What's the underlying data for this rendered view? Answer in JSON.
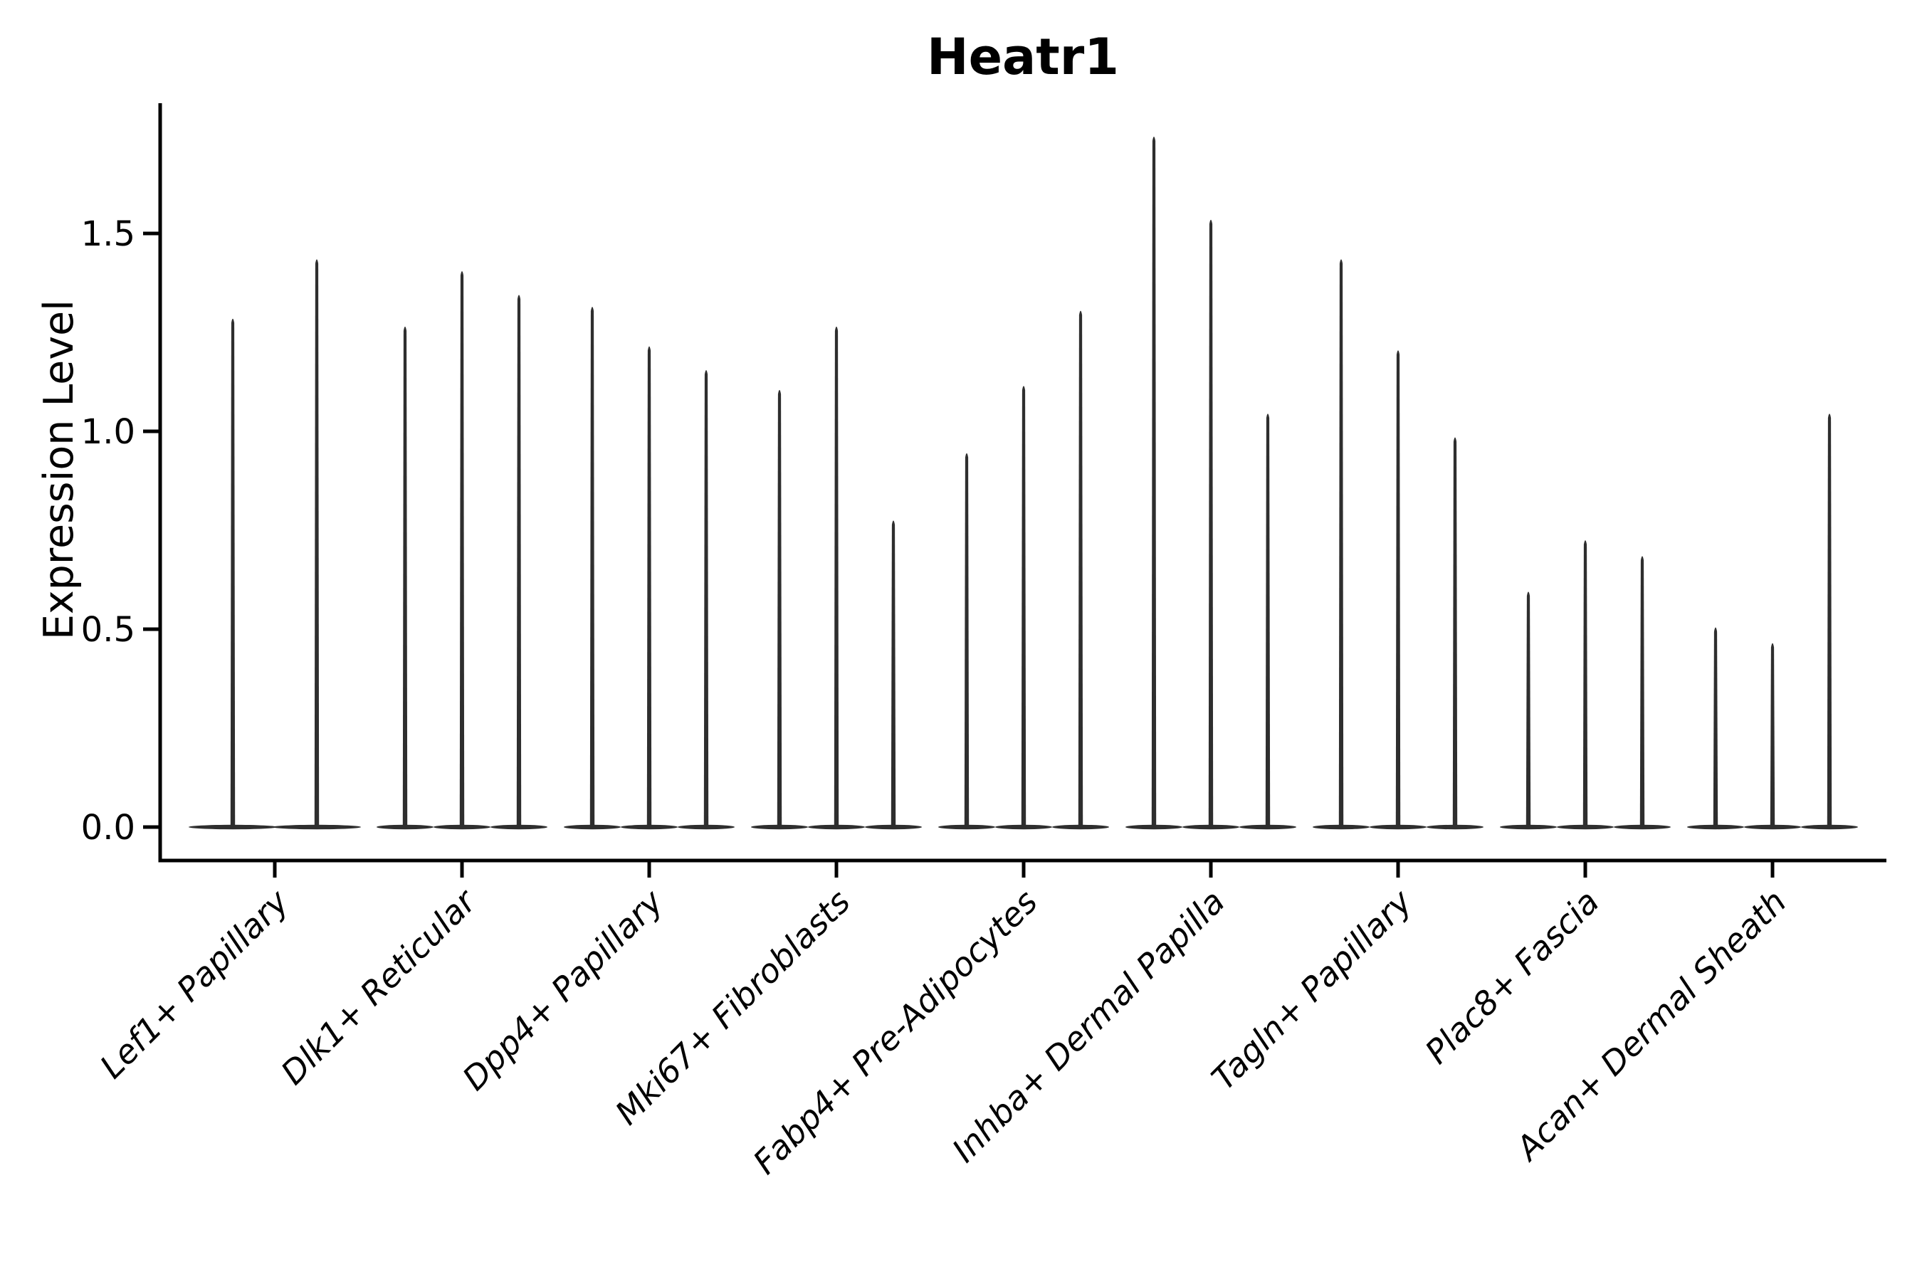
{
  "figure": {
    "background_color": "#ffffff",
    "text_color": "#000000",
    "axis_color": "#000000",
    "violin_color": "#2e2e2e"
  },
  "chart_data": {
    "type": "violin",
    "title": "Heatr1",
    "xlabel": "",
    "ylabel": "Expression Level",
    "grid": false,
    "legend_position": "none",
    "yticks": [
      "0.0",
      "0.5",
      "1.0",
      "1.5"
    ],
    "ytick_values": [
      0.0,
      0.5,
      1.0,
      1.5
    ],
    "ylim": [
      -0.08,
      1.83
    ],
    "categories": [
      "Lef1+ Papillary",
      "Dlk1+ Reticular",
      "Dpp4+ Papillary",
      "Mki67+ Fibroblasts",
      "Fabp4+ Pre-Adipocytes",
      "Inhba+ Dermal Papilla",
      "Tagln+ Papillary",
      "Plac8+ Fascia",
      "Acan+ Dermal Sheath"
    ],
    "groups": [
      {
        "category": "Lef1+ Papillary",
        "violin_max_expression": [
          1.29,
          1.44
        ]
      },
      {
        "category": "Dlk1+ Reticular",
        "violin_max_expression": [
          1.27,
          1.41,
          1.35
        ]
      },
      {
        "category": "Dpp4+ Papillary",
        "violin_max_expression": [
          1.32,
          1.22,
          1.16
        ]
      },
      {
        "category": "Mki67+ Fibroblasts",
        "violin_max_expression": [
          1.11,
          1.27,
          0.78
        ]
      },
      {
        "category": "Fabp4+ Pre-Adipocytes",
        "violin_max_expression": [
          0.95,
          1.12,
          1.31
        ]
      },
      {
        "category": "Inhba+ Dermal Papilla",
        "violin_max_expression": [
          1.75,
          1.54,
          1.05
        ]
      },
      {
        "category": "Tagln+ Papillary",
        "violin_max_expression": [
          1.44,
          1.21,
          0.99
        ]
      },
      {
        "category": "Plac8+ Fascia",
        "violin_max_expression": [
          0.6,
          0.73,
          0.69
        ]
      },
      {
        "category": "Acan+ Dermal Sheath",
        "violin_max_expression": [
          0.51,
          0.47,
          1.05
        ]
      }
    ],
    "violin_baseline_value": 0.0,
    "note_shape": "thin needle violins: wide flat density at 0, narrow spike to max expression"
  }
}
